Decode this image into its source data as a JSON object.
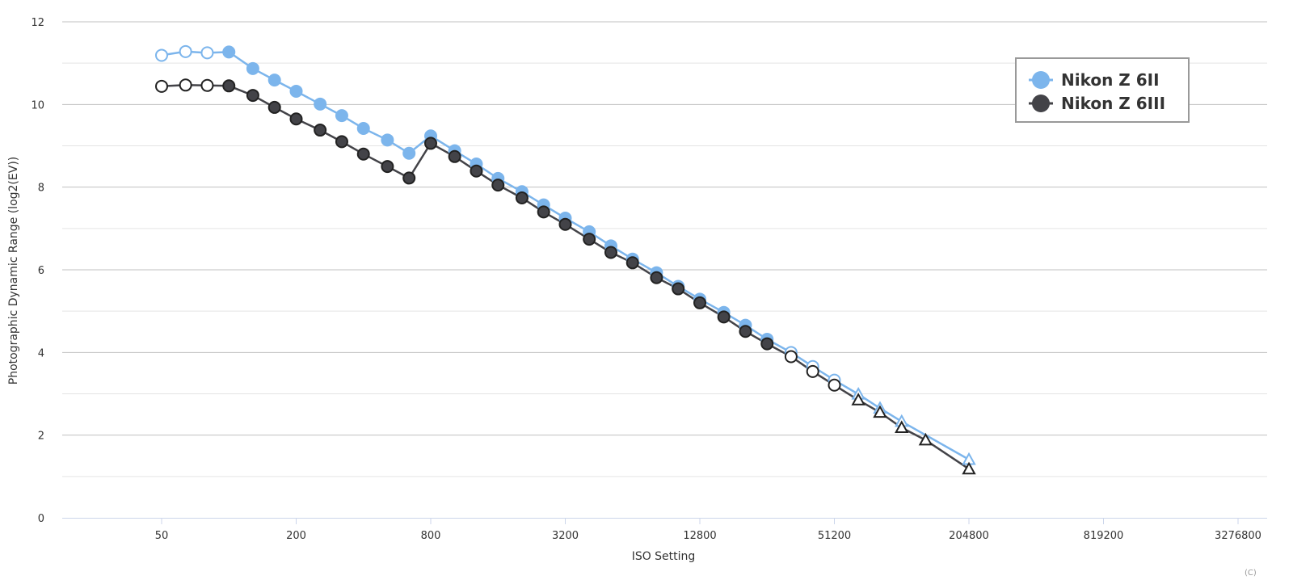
{
  "chart_data": {
    "type": "line",
    "xlabel": "ISO Setting",
    "ylabel": "Photographic Dynamic Range (log2(EV))",
    "x_scale": "log2",
    "xlim": [
      24,
      4096000
    ],
    "ylim": [
      0,
      12
    ],
    "x_ticks": [
      "50",
      "200",
      "800",
      "3200",
      "12800",
      "51200",
      "204800",
      "819200",
      "3276800"
    ],
    "y_ticks": [
      "0",
      "2",
      "4",
      "6",
      "8",
      "10",
      "12"
    ],
    "grid": true,
    "legend_position": "top-right",
    "colors": {
      "Nikon Z 6II": "#7cb5ec",
      "Nikon Z 6III": "#434348",
      "grid": "#c8c8c8",
      "axis": "#ccd6eb"
    },
    "marker_legend": {
      "open-circle": "open circle",
      "filled-circle": "filled circle",
      "open-triangle": "open triangle"
    },
    "series": [
      {
        "name": "Nikon Z 6II",
        "points": [
          {
            "x": 50,
            "y": 11.19,
            "marker": "open-circle"
          },
          {
            "x": 64,
            "y": 11.28,
            "marker": "open-circle"
          },
          {
            "x": 80,
            "y": 11.25,
            "marker": "open-circle"
          },
          {
            "x": 100,
            "y": 11.27,
            "marker": "filled-circle"
          },
          {
            "x": 128,
            "y": 10.87,
            "marker": "filled-circle"
          },
          {
            "x": 160,
            "y": 10.59,
            "marker": "filled-circle"
          },
          {
            "x": 200,
            "y": 10.32,
            "marker": "filled-circle"
          },
          {
            "x": 256,
            "y": 10.01,
            "marker": "filled-circle"
          },
          {
            "x": 320,
            "y": 9.73,
            "marker": "filled-circle"
          },
          {
            "x": 400,
            "y": 9.42,
            "marker": "filled-circle"
          },
          {
            "x": 512,
            "y": 9.14,
            "marker": "filled-circle"
          },
          {
            "x": 640,
            "y": 8.82,
            "marker": "filled-circle"
          },
          {
            "x": 800,
            "y": 9.24,
            "marker": "filled-circle"
          },
          {
            "x": 1024,
            "y": 8.88,
            "marker": "filled-circle"
          },
          {
            "x": 1280,
            "y": 8.56,
            "marker": "filled-circle"
          },
          {
            "x": 1600,
            "y": 8.21,
            "marker": "filled-circle"
          },
          {
            "x": 2048,
            "y": 7.89,
            "marker": "filled-circle"
          },
          {
            "x": 2560,
            "y": 7.57,
            "marker": "filled-circle"
          },
          {
            "x": 3200,
            "y": 7.25,
            "marker": "filled-circle"
          },
          {
            "x": 4096,
            "y": 6.92,
            "marker": "filled-circle"
          },
          {
            "x": 5120,
            "y": 6.58,
            "marker": "filled-circle"
          },
          {
            "x": 6400,
            "y": 6.26,
            "marker": "filled-circle"
          },
          {
            "x": 8192,
            "y": 5.93,
            "marker": "filled-circle"
          },
          {
            "x": 10240,
            "y": 5.6,
            "marker": "filled-circle"
          },
          {
            "x": 12800,
            "y": 5.29,
            "marker": "filled-circle"
          },
          {
            "x": 16384,
            "y": 4.97,
            "marker": "filled-circle"
          },
          {
            "x": 20480,
            "y": 4.66,
            "marker": "filled-circle"
          },
          {
            "x": 25600,
            "y": 4.32,
            "marker": "filled-circle"
          },
          {
            "x": 32768,
            "y": 4.0,
            "marker": "open-circle"
          },
          {
            "x": 40960,
            "y": 3.66,
            "marker": "open-circle"
          },
          {
            "x": 51200,
            "y": 3.33,
            "marker": "open-circle"
          },
          {
            "x": 65536,
            "y": 2.99,
            "marker": "open-triangle"
          },
          {
            "x": 81920,
            "y": 2.65,
            "marker": "open-triangle"
          },
          {
            "x": 102400,
            "y": 2.33,
            "marker": "open-triangle"
          },
          {
            "x": 204800,
            "y": 1.41,
            "marker": "open-triangle"
          }
        ]
      },
      {
        "name": "Nikon Z 6III",
        "points": [
          {
            "x": 50,
            "y": 10.44,
            "marker": "open-circle"
          },
          {
            "x": 64,
            "y": 10.47,
            "marker": "open-circle"
          },
          {
            "x": 80,
            "y": 10.46,
            "marker": "open-circle"
          },
          {
            "x": 100,
            "y": 10.45,
            "marker": "filled-circle"
          },
          {
            "x": 128,
            "y": 10.22,
            "marker": "filled-circle"
          },
          {
            "x": 160,
            "y": 9.93,
            "marker": "filled-circle"
          },
          {
            "x": 200,
            "y": 9.65,
            "marker": "filled-circle"
          },
          {
            "x": 256,
            "y": 9.38,
            "marker": "filled-circle"
          },
          {
            "x": 320,
            "y": 9.1,
            "marker": "filled-circle"
          },
          {
            "x": 400,
            "y": 8.8,
            "marker": "filled-circle"
          },
          {
            "x": 512,
            "y": 8.5,
            "marker": "filled-circle"
          },
          {
            "x": 640,
            "y": 8.22,
            "marker": "filled-circle"
          },
          {
            "x": 800,
            "y": 9.06,
            "marker": "filled-circle"
          },
          {
            "x": 1024,
            "y": 8.74,
            "marker": "filled-circle"
          },
          {
            "x": 1280,
            "y": 8.39,
            "marker": "filled-circle"
          },
          {
            "x": 1600,
            "y": 8.05,
            "marker": "filled-circle"
          },
          {
            "x": 2048,
            "y": 7.74,
            "marker": "filled-circle"
          },
          {
            "x": 2560,
            "y": 7.4,
            "marker": "filled-circle"
          },
          {
            "x": 3200,
            "y": 7.1,
            "marker": "filled-circle"
          },
          {
            "x": 4096,
            "y": 6.74,
            "marker": "filled-circle"
          },
          {
            "x": 5120,
            "y": 6.42,
            "marker": "filled-circle"
          },
          {
            "x": 6400,
            "y": 6.17,
            "marker": "filled-circle"
          },
          {
            "x": 8192,
            "y": 5.81,
            "marker": "filled-circle"
          },
          {
            "x": 10240,
            "y": 5.54,
            "marker": "filled-circle"
          },
          {
            "x": 12800,
            "y": 5.2,
            "marker": "filled-circle"
          },
          {
            "x": 16384,
            "y": 4.86,
            "marker": "filled-circle"
          },
          {
            "x": 20480,
            "y": 4.51,
            "marker": "filled-circle"
          },
          {
            "x": 25600,
            "y": 4.21,
            "marker": "filled-circle"
          },
          {
            "x": 32768,
            "y": 3.9,
            "marker": "open-circle"
          },
          {
            "x": 40960,
            "y": 3.54,
            "marker": "open-circle"
          },
          {
            "x": 51200,
            "y": 3.21,
            "marker": "open-circle"
          },
          {
            "x": 65536,
            "y": 2.85,
            "marker": "open-triangle"
          },
          {
            "x": 81920,
            "y": 2.55,
            "marker": "open-triangle"
          },
          {
            "x": 102400,
            "y": 2.18,
            "marker": "open-triangle"
          },
          {
            "x": 131072,
            "y": 1.88,
            "marker": "open-triangle"
          },
          {
            "x": 204800,
            "y": 1.18,
            "marker": "open-triangle"
          }
        ]
      }
    ]
  },
  "credit": "(C)"
}
